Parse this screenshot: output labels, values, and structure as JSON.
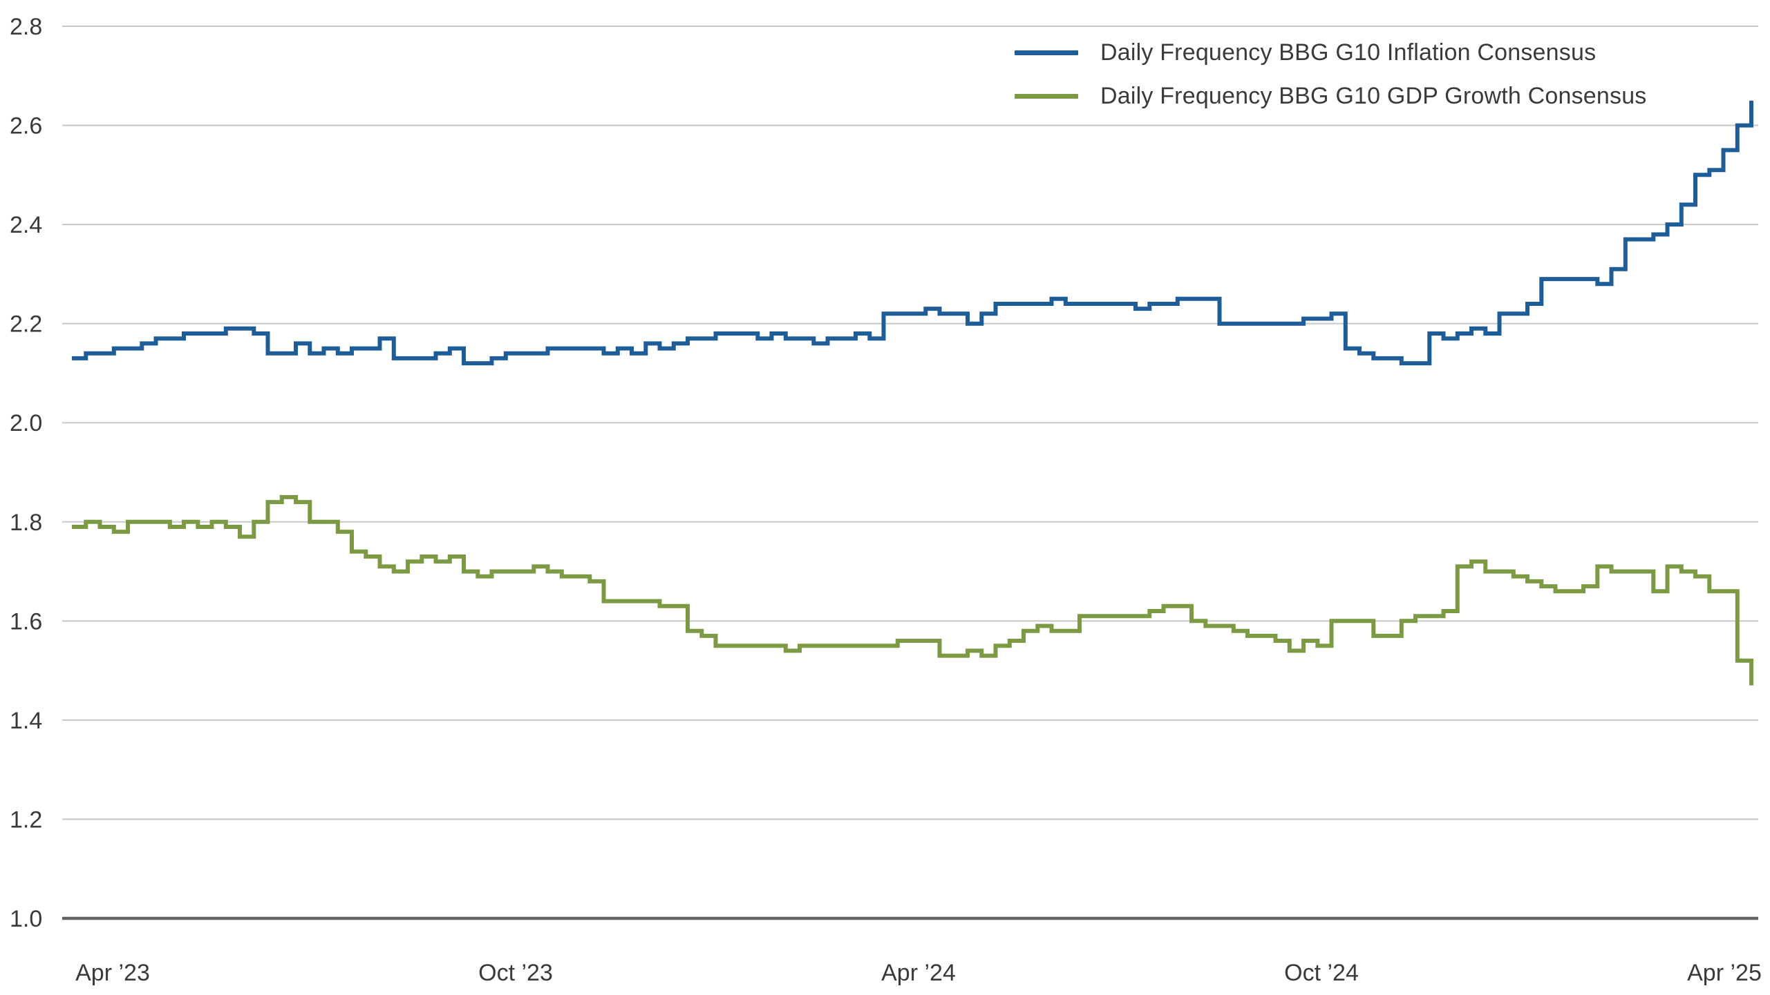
{
  "chart_data": {
    "type": "line",
    "title": "",
    "line_style": "step-after",
    "grid": "horizontal",
    "legend_position": "top-inside-right",
    "ylim": [
      1.0,
      2.8
    ],
    "y_ticks": [
      1.0,
      1.2,
      1.4,
      1.6,
      1.8,
      2.0,
      2.2,
      2.4,
      2.6,
      2.8
    ],
    "x_ticks": [
      "Apr ’23",
      "Oct ’23",
      "Apr ’24",
      "Oct ’24",
      "Apr ’25"
    ],
    "colors": {
      "inflation": "#1f5d99",
      "gdp": "#7b9a43",
      "grid": "#c7c7c7",
      "axis": "#646464",
      "text": "#3a3a3a"
    },
    "legend": [
      {
        "label": "Daily Frequency BBG G10 Inflation Consensus",
        "color": "#1f5d99"
      },
      {
        "label": "Daily Frequency BBG G10 GDP Growth Consensus",
        "color": "#7b9a43"
      }
    ],
    "series": [
      {
        "name": "Daily Frequency BBG G10 Inflation Consensus",
        "key": "inflation",
        "color": "#1f5d99",
        "values": [
          2.13,
          2.14,
          2.14,
          2.15,
          2.15,
          2.16,
          2.17,
          2.17,
          2.18,
          2.18,
          2.18,
          2.19,
          2.19,
          2.18,
          2.14,
          2.14,
          2.16,
          2.14,
          2.15,
          2.14,
          2.15,
          2.15,
          2.17,
          2.13,
          2.13,
          2.13,
          2.14,
          2.15,
          2.12,
          2.12,
          2.13,
          2.14,
          2.14,
          2.14,
          2.15,
          2.15,
          2.15,
          2.15,
          2.14,
          2.15,
          2.14,
          2.16,
          2.15,
          2.16,
          2.17,
          2.17,
          2.18,
          2.18,
          2.18,
          2.17,
          2.18,
          2.17,
          2.17,
          2.16,
          2.17,
          2.17,
          2.18,
          2.17,
          2.22,
          2.22,
          2.22,
          2.23,
          2.22,
          2.22,
          2.2,
          2.22,
          2.24,
          2.24,
          2.24,
          2.24,
          2.25,
          2.24,
          2.24,
          2.24,
          2.24,
          2.24,
          2.23,
          2.24,
          2.24,
          2.25,
          2.25,
          2.25,
          2.2,
          2.2,
          2.2,
          2.2,
          2.2,
          2.2,
          2.21,
          2.21,
          2.22,
          2.15,
          2.14,
          2.13,
          2.13,
          2.12,
          2.12,
          2.18,
          2.17,
          2.18,
          2.19,
          2.18,
          2.22,
          2.22,
          2.24,
          2.29,
          2.29,
          2.29,
          2.29,
          2.28,
          2.31,
          2.37,
          2.37,
          2.38,
          2.4,
          2.44,
          2.5,
          2.51,
          2.55,
          2.6,
          2.65
        ]
      },
      {
        "name": "Daily Frequency BBG G10 GDP Growth Consensus",
        "key": "gdp",
        "color": "#7b9a43",
        "values": [
          1.79,
          1.8,
          1.79,
          1.78,
          1.8,
          1.8,
          1.8,
          1.79,
          1.8,
          1.79,
          1.8,
          1.79,
          1.77,
          1.8,
          1.84,
          1.85,
          1.84,
          1.8,
          1.8,
          1.78,
          1.74,
          1.73,
          1.71,
          1.7,
          1.72,
          1.73,
          1.72,
          1.73,
          1.7,
          1.69,
          1.7,
          1.7,
          1.7,
          1.71,
          1.7,
          1.69,
          1.69,
          1.68,
          1.64,
          1.64,
          1.64,
          1.64,
          1.63,
          1.63,
          1.58,
          1.57,
          1.55,
          1.55,
          1.55,
          1.55,
          1.55,
          1.54,
          1.55,
          1.55,
          1.55,
          1.55,
          1.55,
          1.55,
          1.55,
          1.56,
          1.56,
          1.56,
          1.53,
          1.53,
          1.54,
          1.53,
          1.55,
          1.56,
          1.58,
          1.59,
          1.58,
          1.58,
          1.61,
          1.61,
          1.61,
          1.61,
          1.61,
          1.62,
          1.63,
          1.63,
          1.6,
          1.59,
          1.59,
          1.58,
          1.57,
          1.57,
          1.56,
          1.54,
          1.56,
          1.55,
          1.6,
          1.6,
          1.6,
          1.57,
          1.57,
          1.6,
          1.61,
          1.61,
          1.62,
          1.71,
          1.72,
          1.7,
          1.7,
          1.69,
          1.68,
          1.67,
          1.66,
          1.66,
          1.67,
          1.71,
          1.7,
          1.7,
          1.7,
          1.66,
          1.71,
          1.7,
          1.69,
          1.66,
          1.66,
          1.52,
          1.47
        ]
      }
    ]
  }
}
